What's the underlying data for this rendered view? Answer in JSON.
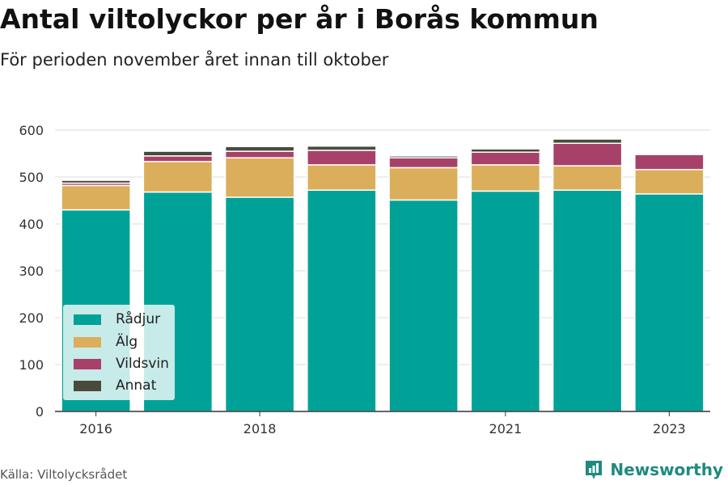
{
  "header": {
    "title": "Antal viltolyckor per år i Borås kommun",
    "subtitle": "För perioden november året innan till oktober"
  },
  "footer": {
    "source": "Källa: Viltolycksrådet",
    "brand": "Newsworthy"
  },
  "legend": [
    {
      "label": "Rådjur",
      "color": "#00a298"
    },
    {
      "label": "Älg",
      "color": "#dbae5b"
    },
    {
      "label": "Vildsvin",
      "color": "#a8416a"
    },
    {
      "label": "Annat",
      "color": "#4a4a3c"
    }
  ],
  "chart_data": {
    "type": "bar",
    "stacked": true,
    "categories": [
      "2016",
      "2017",
      "2018",
      "2019",
      "2020",
      "2021",
      "2022",
      "2023"
    ],
    "x_tick_labels": [
      "2016",
      "",
      "2018",
      "",
      "",
      "2021",
      "",
      "2023"
    ],
    "series": [
      {
        "name": "Rådjur",
        "color": "#00a298",
        "values": [
          430,
          468,
          457,
          472,
          451,
          470,
          472,
          464
        ]
      },
      {
        "name": "Älg",
        "color": "#dbae5b",
        "values": [
          52,
          65,
          84,
          54,
          69,
          56,
          52,
          52
        ]
      },
      {
        "name": "Vildsvin",
        "color": "#a8416a",
        "values": [
          5,
          12,
          14,
          31,
          21,
          27,
          48,
          32
        ]
      },
      {
        "name": "Annat",
        "color": "#4a4a3c",
        "values": [
          6,
          10,
          10,
          9,
          4,
          7,
          9,
          0
        ]
      }
    ],
    "ylim": [
      0,
      600
    ],
    "yticks": [
      0,
      100,
      200,
      300,
      400,
      500,
      600
    ],
    "grid": true,
    "legend_position": "bottom-left"
  }
}
